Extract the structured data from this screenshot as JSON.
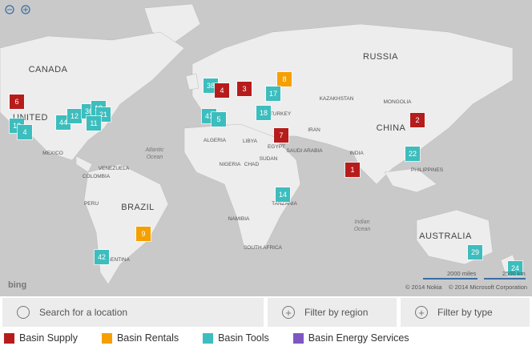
{
  "map_labels": [
    "CANADA",
    "UNITED",
    "MEXICO",
    "BRAZIL",
    "RUSSIA",
    "CHINA",
    "INDIA",
    "AUSTRALIA",
    "MONGOLIA",
    "KAZAKHSTAN",
    "TURKEY",
    "IRAN",
    "SAUDI ARABIA",
    "EGYPT",
    "LIBYA",
    "ALGERIA",
    "SUDAN",
    "CHAD",
    "NIGERIA",
    "TANZANIA",
    "NAMIBIA",
    "SOUTH AFRICA",
    "PHILIPPINES",
    "COLOMBIA",
    "VENEZUELA",
    "PERU",
    "ARGENTINA",
    "Atlantic",
    "Ocean",
    "Indian",
    "Ocean"
  ],
  "markers": [
    {
      "label": "6",
      "color": "#b71c1c"
    },
    {
      "label": "13",
      "color": "#3dbdbd"
    },
    {
      "label": "4",
      "color": "#3dbdbd"
    },
    {
      "label": "44",
      "color": "#3dbdbd"
    },
    {
      "label": "12",
      "color": "#3dbdbd"
    },
    {
      "label": "36",
      "color": "#3dbdbd"
    },
    {
      "label": "19",
      "color": "#3dbdbd"
    },
    {
      "label": "21",
      "color": "#3dbdbd"
    },
    {
      "label": "11",
      "color": "#3dbdbd"
    },
    {
      "label": "38",
      "color": "#3dbdbd"
    },
    {
      "label": "4",
      "color": "#b71c1c"
    },
    {
      "label": "3",
      "color": "#b71c1c"
    },
    {
      "label": "8",
      "color": "#f5a000"
    },
    {
      "label": "17",
      "color": "#3dbdbd"
    },
    {
      "label": "41",
      "color": "#3dbdbd"
    },
    {
      "label": "5",
      "color": "#3dbdbd"
    },
    {
      "label": "18",
      "color": "#3dbdbd"
    },
    {
      "label": "7",
      "color": "#b71c1c"
    },
    {
      "label": "2",
      "color": "#b71c1c"
    },
    {
      "label": "22",
      "color": "#3dbdbd"
    },
    {
      "label": "1",
      "color": "#b71c1c"
    },
    {
      "label": "14",
      "color": "#3dbdbd"
    },
    {
      "label": "9",
      "color": "#f5a000"
    },
    {
      "label": "42",
      "color": "#3dbdbd"
    },
    {
      "label": "29",
      "color": "#3dbdbd"
    },
    {
      "label": "24",
      "color": "#3dbdbd"
    }
  ],
  "attribution": {
    "logo": "bing",
    "scale_miles": "2000 miles",
    "scale_km": "2500 km",
    "nokia": "© 2014 Nokia",
    "microsoft": "© 2014 Microsoft Corporation"
  },
  "toolbar": {
    "search": "Search for a location",
    "filter_region": "Filter by region",
    "filter_type": "Filter by type"
  },
  "legend": [
    {
      "name": "Basin Supply",
      "color": "#b71c1c"
    },
    {
      "name": "Basin Rentals",
      "color": "#f5a000"
    },
    {
      "name": "Basin Tools",
      "color": "#3dbdbd"
    },
    {
      "name": "Basin Energy Services",
      "color": "#7e57c2"
    }
  ]
}
